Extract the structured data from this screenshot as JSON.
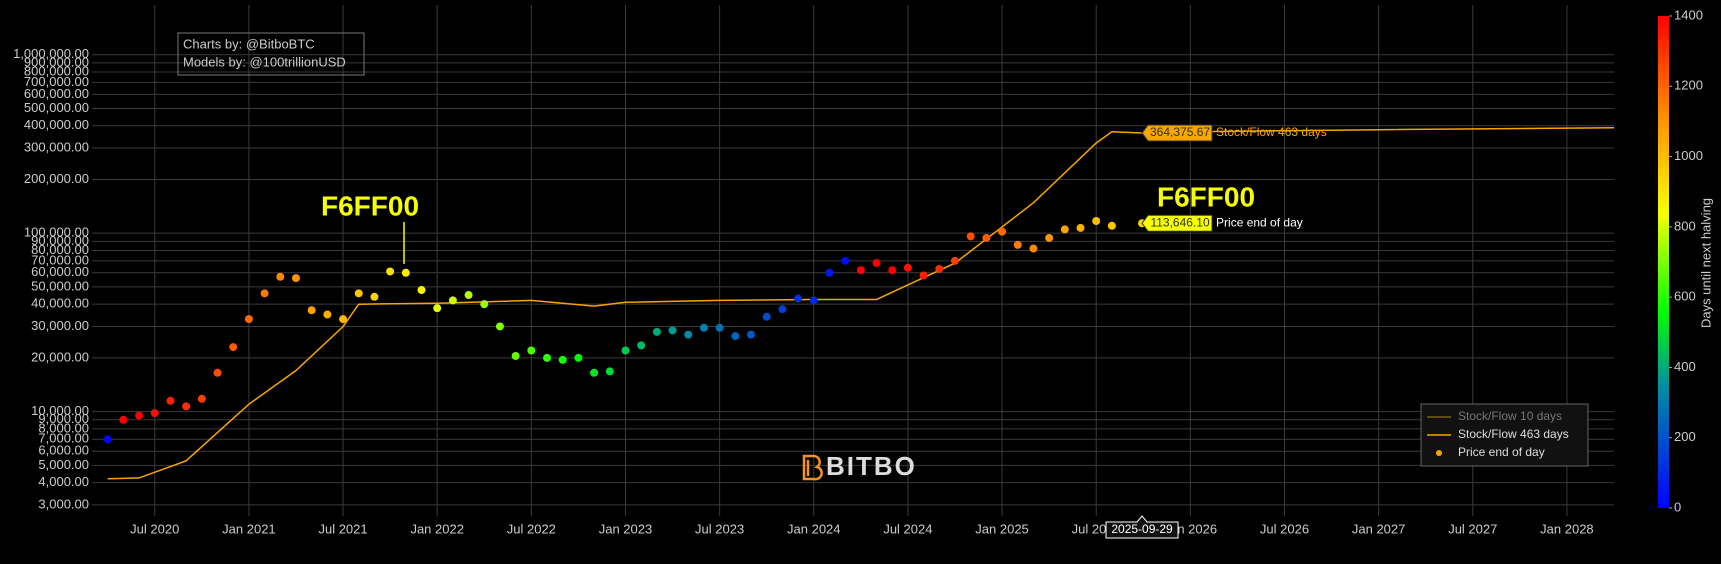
{
  "chart_data": {
    "type": "scatter",
    "log_y": true,
    "grid": true,
    "legend": "bottom-right",
    "credits": [
      "Charts by: @BitboBTC",
      "Models by: @100trillionUSD"
    ],
    "logo": "BITBO",
    "annotations": [
      {
        "text": "F6FF00"
      },
      {
        "text": "F6FF00"
      }
    ],
    "xlim": [
      "2020-03",
      "2028-04"
    ],
    "xticks": [
      {
        "value": "2020-07",
        "label": "Jul 2020"
      },
      {
        "value": "2021-01",
        "label": "Jan 2021"
      },
      {
        "value": "2021-07",
        "label": "Jul 2021"
      },
      {
        "value": "2022-01",
        "label": "Jan 2022"
      },
      {
        "value": "2022-07",
        "label": "Jul 2022"
      },
      {
        "value": "2023-01",
        "label": "Jan 2023"
      },
      {
        "value": "2023-07",
        "label": "Jul 2023"
      },
      {
        "value": "2024-01",
        "label": "Jan 2024"
      },
      {
        "value": "2024-07",
        "label": "Jul 2024"
      },
      {
        "value": "2025-01",
        "label": "Jan 2025"
      },
      {
        "value": "2025-07",
        "label": "Jul 2025"
      },
      {
        "value": "2026-01",
        "label": "Jan 2026"
      },
      {
        "value": "2026-07",
        "label": "Jul 2026"
      },
      {
        "value": "2027-01",
        "label": "Jan 2027"
      },
      {
        "value": "2027-07",
        "label": "Jul 2027"
      },
      {
        "value": "2028-01",
        "label": "Jan 2028"
      }
    ],
    "ylim": [
      2600,
      1900000
    ],
    "yticks": [
      {
        "value": 3000,
        "label": "3,000.00"
      },
      {
        "value": 4000,
        "label": "4,000.00"
      },
      {
        "value": 5000,
        "label": "5,000.00"
      },
      {
        "value": 6000,
        "label": "6,000.00"
      },
      {
        "value": 7000,
        "label": "7,000.00"
      },
      {
        "value": 8000,
        "label": "8,000.00"
      },
      {
        "value": 9000,
        "label": "9,000.00"
      },
      {
        "value": 10000,
        "label": "10,000.00"
      },
      {
        "value": 20000,
        "label": "20,000.00"
      },
      {
        "value": 30000,
        "label": "30,000.00"
      },
      {
        "value": 40000,
        "label": "40,000.00"
      },
      {
        "value": 50000,
        "label": "50,000.00"
      },
      {
        "value": 60000,
        "label": "60,000.00"
      },
      {
        "value": 70000,
        "label": "70,000.00"
      },
      {
        "value": 80000,
        "label": "80,000.00"
      },
      {
        "value": 90000,
        "label": "90,000.00"
      },
      {
        "value": 100000,
        "label": "100,000.00"
      },
      {
        "value": 200000,
        "label": "200,000.00"
      },
      {
        "value": 300000,
        "label": "300,000.00"
      },
      {
        "value": 400000,
        "label": "400,000.00"
      },
      {
        "value": 500000,
        "label": "500,000.00"
      },
      {
        "value": 600000,
        "label": "600,000.00"
      },
      {
        "value": 700000,
        "label": "700,000.00"
      },
      {
        "value": 800000,
        "label": "800,000.00"
      },
      {
        "value": 900000,
        "label": "900,000.00"
      },
      {
        "value": 1000000,
        "label": "1,000,000.00"
      }
    ],
    "colorbar": {
      "title": "Days until next halving",
      "range": [
        0,
        1400
      ],
      "ticks": [
        0,
        200,
        400,
        600,
        800,
        1000,
        1200,
        1400
      ],
      "colorscale": [
        [
          0,
          "#0000ff"
        ],
        [
          0.25,
          "#0090a0"
        ],
        [
          0.4,
          "#00ff00"
        ],
        [
          0.6,
          "#f6ff00"
        ],
        [
          0.8,
          "#ff8c00"
        ],
        [
          1,
          "#ff0000"
        ]
      ]
    },
    "series": [
      {
        "name": "Stock/Flow 10 days",
        "color": "#7a5a1a",
        "visible": "legendonly"
      },
      {
        "name": "Stock/Flow 463 days",
        "color": "#f7a600",
        "mode": "line",
        "x": [
          "2020-04",
          "2020-06",
          "2020-09",
          "2021-01",
          "2021-04",
          "2021-07",
          "2021-08",
          "2022-01",
          "2022-07",
          "2022-11",
          "2023-01",
          "2023-07",
          "2024-01",
          "2024-05",
          "2024-10",
          "2025-03",
          "2025-07",
          "2025-08",
          "2025-09-29",
          "2026-01",
          "2027-01",
          "2028-04"
        ],
        "values": [
          4200,
          4250,
          5300,
          11000,
          17000,
          30000,
          40000,
          40500,
          42000,
          39000,
          41000,
          42000,
          42500,
          42500,
          68000,
          148000,
          320000,
          370000,
          364375.67,
          370000,
          380000,
          390000
        ],
        "value_labels": [
          null,
          null,
          null,
          null,
          null,
          null,
          null,
          null,
          null,
          null,
          null,
          null,
          null,
          null,
          null,
          null,
          null,
          null,
          "364,375.67",
          null,
          null,
          null
        ]
      },
      {
        "name": "Price end of day",
        "color": "#f7a600",
        "mode": "markers",
        "x": [
          "2020-04",
          "2020-05",
          "2020-06",
          "2020-07",
          "2020-08",
          "2020-09",
          "2020-10",
          "2020-11",
          "2020-12",
          "2021-01",
          "2021-02",
          "2021-03",
          "2021-04",
          "2021-05",
          "2021-06",
          "2021-07",
          "2021-08",
          "2021-09",
          "2021-10",
          "2021-11",
          "2021-12",
          "2022-01",
          "2022-02",
          "2022-03",
          "2022-04",
          "2022-05",
          "2022-06",
          "2022-07",
          "2022-08",
          "2022-09",
          "2022-10",
          "2022-11",
          "2022-12",
          "2023-01",
          "2023-02",
          "2023-03",
          "2023-04",
          "2023-05",
          "2023-06",
          "2023-07",
          "2023-08",
          "2023-09",
          "2023-10",
          "2023-11",
          "2023-12",
          "2024-01",
          "2024-02",
          "2024-03",
          "2024-04",
          "2024-05",
          "2024-06",
          "2024-07",
          "2024-08",
          "2024-09",
          "2024-10",
          "2024-11",
          "2024-12",
          "2025-01",
          "2025-02",
          "2025-03",
          "2025-04",
          "2025-05",
          "2025-06",
          "2025-07",
          "2025-08",
          "2025-09-29"
        ],
        "values": [
          7000,
          9000,
          9500,
          9800,
          11500,
          10700,
          11800,
          16500,
          23000,
          33000,
          46000,
          57000,
          56000,
          37000,
          35000,
          33000,
          46000,
          44000,
          61000,
          60000,
          48000,
          38000,
          42000,
          45000,
          40000,
          30000,
          20500,
          22000,
          20000,
          19500,
          20000,
          16500,
          16800,
          22000,
          23500,
          28000,
          28500,
          27000,
          29500,
          29500,
          26500,
          27000,
          34000,
          37500,
          43000,
          42000,
          60000,
          70000,
          62000,
          68000,
          62000,
          64000,
          58000,
          63000,
          70000,
          96000,
          94000,
          102000,
          86000,
          82000,
          94000,
          105000,
          107000,
          117000,
          110000,
          113646.1
        ],
        "color_values": [
          25,
          1432,
          1402,
          1371,
          1341,
          1311,
          1280,
          1250,
          1220,
          1189,
          1159,
          1128,
          1098,
          1067,
          1037,
          1007,
          976,
          946,
          915,
          885,
          855,
          824,
          794,
          763,
          733,
          703,
          672,
          642,
          611,
          581,
          551,
          520,
          490,
          459,
          429,
          399,
          368,
          338,
          307,
          277,
          247,
          216,
          186,
          155,
          125,
          95,
          64,
          34,
          1460,
          1430,
          1400,
          1369,
          1339,
          1308,
          1278,
          1248,
          1217,
          1187,
          1156,
          1126,
          1096,
          1065,
          1035,
          1004,
          974,
          944
        ],
        "value_labels": [
          null,
          null,
          null,
          null,
          null,
          null,
          null,
          null,
          null,
          null,
          null,
          null,
          null,
          null,
          null,
          null,
          null,
          null,
          null,
          null,
          null,
          null,
          null,
          null,
          null,
          null,
          null,
          null,
          null,
          null,
          null,
          null,
          null,
          null,
          null,
          null,
          null,
          null,
          null,
          null,
          null,
          null,
          null,
          null,
          null,
          null,
          null,
          null,
          null,
          null,
          null,
          null,
          null,
          null,
          null,
          null,
          null,
          null,
          null,
          null,
          null,
          null,
          null,
          null,
          null,
          "113,646.10"
        ]
      }
    ]
  }
}
